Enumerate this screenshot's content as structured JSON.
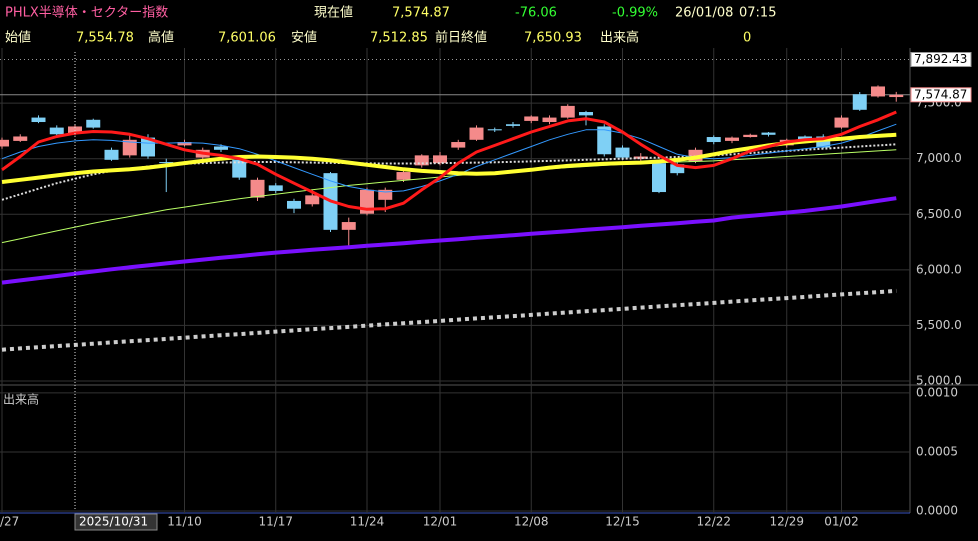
{
  "header": {
    "title": "PHLX半導体・セクター指数",
    "row1": [
      "現在値",
      "7,574.87",
      "-76.06",
      "-0.99%",
      "26/01/08",
      "07:15"
    ],
    "row2": [
      "始値",
      "7,554.78",
      "高値",
      "7,601.06",
      "安値",
      "7,512.85",
      "前日終値",
      "7,650.93",
      "出来高",
      "0"
    ]
  },
  "chart_data": {
    "type": "candlestick",
    "categories": [
      "/27",
      null,
      null,
      null,
      null,
      null,
      null,
      null,
      null,
      null,
      "11/10",
      null,
      null,
      null,
      null,
      "11/17",
      null,
      null,
      null,
      null,
      "11/24",
      null,
      null,
      null,
      "12/01",
      null,
      null,
      null,
      null,
      "12/08",
      null,
      null,
      null,
      null,
      "12/15",
      null,
      null,
      null,
      null,
      "12/22",
      null,
      null,
      null,
      "12/29",
      null,
      null,
      "01/02",
      null,
      null,
      null
    ],
    "open": [
      7110,
      7160,
      7370,
      7280,
      7230,
      7350,
      7080,
      7030,
      7190,
      6970,
      7120,
      7010,
      7110,
      6990,
      6650,
      6760,
      6620,
      6590,
      6870,
      6360,
      6505,
      6630,
      6810,
      6940,
      6960,
      7100,
      7170,
      7265,
      7310,
      7340,
      7330,
      7370,
      7420,
      7290,
      7100,
      7000,
      6960,
      6950,
      6975,
      7195,
      7160,
      7195,
      7235,
      7120,
      7200,
      7200,
      7280,
      7580,
      7560,
      7554.78
    ],
    "high": [
      7190,
      7220,
      7390,
      7300,
      7310,
      7360,
      7100,
      7220,
      7220,
      7000,
      7170,
      7100,
      7130,
      7010,
      6830,
      6780,
      6640,
      6720,
      6880,
      6470,
      6740,
      6740,
      6900,
      7040,
      7060,
      7170,
      7300,
      7280,
      7330,
      7390,
      7390,
      7490,
      7430,
      7310,
      7120,
      7050,
      6980,
      6970,
      7100,
      7210,
      7200,
      7225,
      7240,
      7180,
      7210,
      7220,
      7390,
      7600,
      7660,
      7601.06
    ],
    "low": [
      7090,
      7150,
      7320,
      7200,
      7210,
      7270,
      6980,
      7010,
      7000,
      6700,
      7110,
      6990,
      7060,
      6810,
      6620,
      6690,
      6510,
      6570,
      6340,
      6190,
      6490,
      6520,
      6790,
      6920,
      6940,
      7080,
      7160,
      7240,
      7280,
      7320,
      7310,
      7360,
      7300,
      7020,
      6990,
      6950,
      6690,
      6850,
      6960,
      7130,
      7140,
      7190,
      7200,
      7100,
      7160,
      7090,
      7270,
      7430,
      7550,
      7512.85
    ],
    "close": [
      7170,
      7200,
      7330,
      7220,
      7290,
      7280,
      6990,
      7170,
      7020,
      6960,
      7150,
      7080,
      7080,
      6830,
      6810,
      6710,
      6550,
      6670,
      6360,
      6430,
      6720,
      6720,
      6880,
      7030,
      7030,
      7150,
      7280,
      7255,
      7295,
      7380,
      7370,
      7475,
      7390,
      7040,
      7010,
      7020,
      6700,
      6870,
      7080,
      7150,
      7190,
      7215,
      7215,
      7170,
      7170,
      7100,
      7370,
      7440,
      7650,
      7574.87
    ],
    "up_color": "#f48a8a",
    "down_color": "#7fd0f5",
    "series": [
      {
        "color": "#b9ff66",
        "width": 1,
        "dash": "",
        "values": [
          6245,
          6280,
          6315,
          6350,
          6385,
          6420,
          6450,
          6480,
          6510,
          6540,
          6565,
          6590,
          6615,
          6640,
          6660,
          6680,
          6700,
          6720,
          6740,
          6760,
          6775,
          6790,
          6805,
          6820,
          6835,
          6850,
          6865,
          6880,
          6890,
          6900,
          6910,
          6920,
          6930,
          6940,
          6950,
          6960,
          6965,
          6970,
          6975,
          6980,
          6990,
          7000,
          7010,
          7020,
          7030,
          7040,
          7050,
          7060,
          7070,
          7080
        ]
      },
      {
        "color": "#dddddd",
        "width": 2,
        "dash": "2 2",
        "values": [
          6630,
          6680,
          6730,
          6780,
          6820,
          6860,
          6890,
          6910,
          6930,
          6945,
          6955,
          6960,
          6965,
          6968,
          6970,
          6970,
          6968,
          6965,
          6962,
          6960,
          6958,
          6957,
          6957,
          6958,
          6960,
          6962,
          6965,
          6968,
          6972,
          6976,
          6980,
          6985,
          6990,
          6995,
          7000,
          7005,
          7010,
          7015,
          7020,
          7030,
          7040,
          7050,
          7060,
          7070,
          7080,
          7090,
          7100,
          7110,
          7120,
          7130
        ]
      },
      {
        "color": "#3399ff",
        "width": 1,
        "dash": "",
        "values": [
          7000,
          7060,
          7110,
          7140,
          7160,
          7170,
          7165,
          7150,
          7140,
          7140,
          7145,
          7140,
          7120,
          7090,
          7040,
          6980,
          6920,
          6860,
          6800,
          6750,
          6720,
          6700,
          6710,
          6750,
          6800,
          6860,
          6930,
          6990,
          7050,
          7110,
          7170,
          7220,
          7260,
          7260,
          7230,
          7180,
          7110,
          7040,
          7010,
          7000,
          7010,
          7030,
          7050,
          7070,
          7090,
          7110,
          7140,
          7190,
          7250,
          7310
        ]
      },
      {
        "color": "#ffff33",
        "width": 4,
        "dash": "",
        "values": [
          6790,
          6810,
          6830,
          6850,
          6870,
          6885,
          6895,
          6905,
          6920,
          6940,
          6960,
          6980,
          7000,
          7015,
          7020,
          7015,
          7010,
          7000,
          6985,
          6965,
          6945,
          6925,
          6905,
          6890,
          6880,
          6870,
          6865,
          6870,
          6885,
          6900,
          6920,
          6935,
          6945,
          6955,
          6960,
          6965,
          6975,
          6990,
          7010,
          7040,
          7070,
          7095,
          7120,
          7140,
          7155,
          7170,
          7180,
          7195,
          7205,
          7215
        ]
      },
      {
        "color": "#ff1a1a",
        "width": 3,
        "dash": "",
        "values": [
          6900,
          7020,
          7150,
          7200,
          7230,
          7245,
          7240,
          7220,
          7180,
          7130,
          7080,
          7050,
          7030,
          7000,
          6950,
          6860,
          6780,
          6700,
          6620,
          6570,
          6545,
          6550,
          6600,
          6720,
          6830,
          6960,
          7060,
          7120,
          7180,
          7240,
          7290,
          7340,
          7360,
          7330,
          7240,
          7130,
          7030,
          6940,
          6920,
          6940,
          7000,
          7070,
          7110,
          7150,
          7170,
          7180,
          7220,
          7290,
          7350,
          7420
        ]
      },
      {
        "color": "#7a10ff",
        "width": 4,
        "dash": "",
        "values": [
          5885,
          5905,
          5925,
          5945,
          5965,
          5985,
          6005,
          6023,
          6040,
          6058,
          6075,
          6092,
          6108,
          6124,
          6140,
          6155,
          6168,
          6180,
          6192,
          6204,
          6216,
          6228,
          6240,
          6252,
          6264,
          6276,
          6288,
          6300,
          6312,
          6324,
          6336,
          6348,
          6360,
          6372,
          6384,
          6396,
          6408,
          6420,
          6432,
          6444,
          6470,
          6485,
          6500,
          6515,
          6530,
          6550,
          6570,
          6595,
          6620,
          6645
        ]
      },
      {
        "color": "#cccccc",
        "width": 4,
        "dash": "4 4",
        "values": [
          5282,
          5293,
          5304,
          5314,
          5325,
          5336,
          5347,
          5358,
          5368,
          5379,
          5390,
          5401,
          5412,
          5422,
          5433,
          5444,
          5455,
          5466,
          5476,
          5487,
          5498,
          5509,
          5520,
          5530,
          5541,
          5552,
          5563,
          5574,
          5584,
          5595,
          5606,
          5617,
          5628,
          5638,
          5649,
          5660,
          5671,
          5682,
          5692,
          5703,
          5714,
          5725,
          5736,
          5746,
          5757,
          5768,
          5779,
          5790,
          5800,
          5811
        ]
      }
    ],
    "ylim": [
      5000,
      7960
    ],
    "yticks": [
      {
        "value": 5000,
        "label": "5,000.0"
      },
      {
        "value": 5500,
        "label": "5,500.0"
      },
      {
        "value": 6000,
        "label": "6,000.0"
      },
      {
        "value": 6500,
        "label": "6,500.0"
      },
      {
        "value": 7000,
        "label": "7,000.0"
      },
      {
        "value": 7500,
        "label": "7,500.0"
      }
    ],
    "reference_lines": [
      {
        "value": 7892.43,
        "label": "7,892.43",
        "color": "#999999",
        "dash": "1 3"
      },
      {
        "value": 7574.87,
        "label": "7,574.87",
        "color": "#888888",
        "dash": ""
      }
    ],
    "crosshair": {
      "category": 4,
      "label": "2025/10/31"
    },
    "volume_pane": {
      "label": "出来高",
      "ylim": [
        0,
        0.00105
      ],
      "yticks": [
        {
          "value": 0,
          "label": "0.0000"
        },
        {
          "value": 0.0005,
          "label": "0.0005"
        },
        {
          "value": 0.001,
          "label": "0.0010"
        }
      ]
    },
    "grid": true
  }
}
